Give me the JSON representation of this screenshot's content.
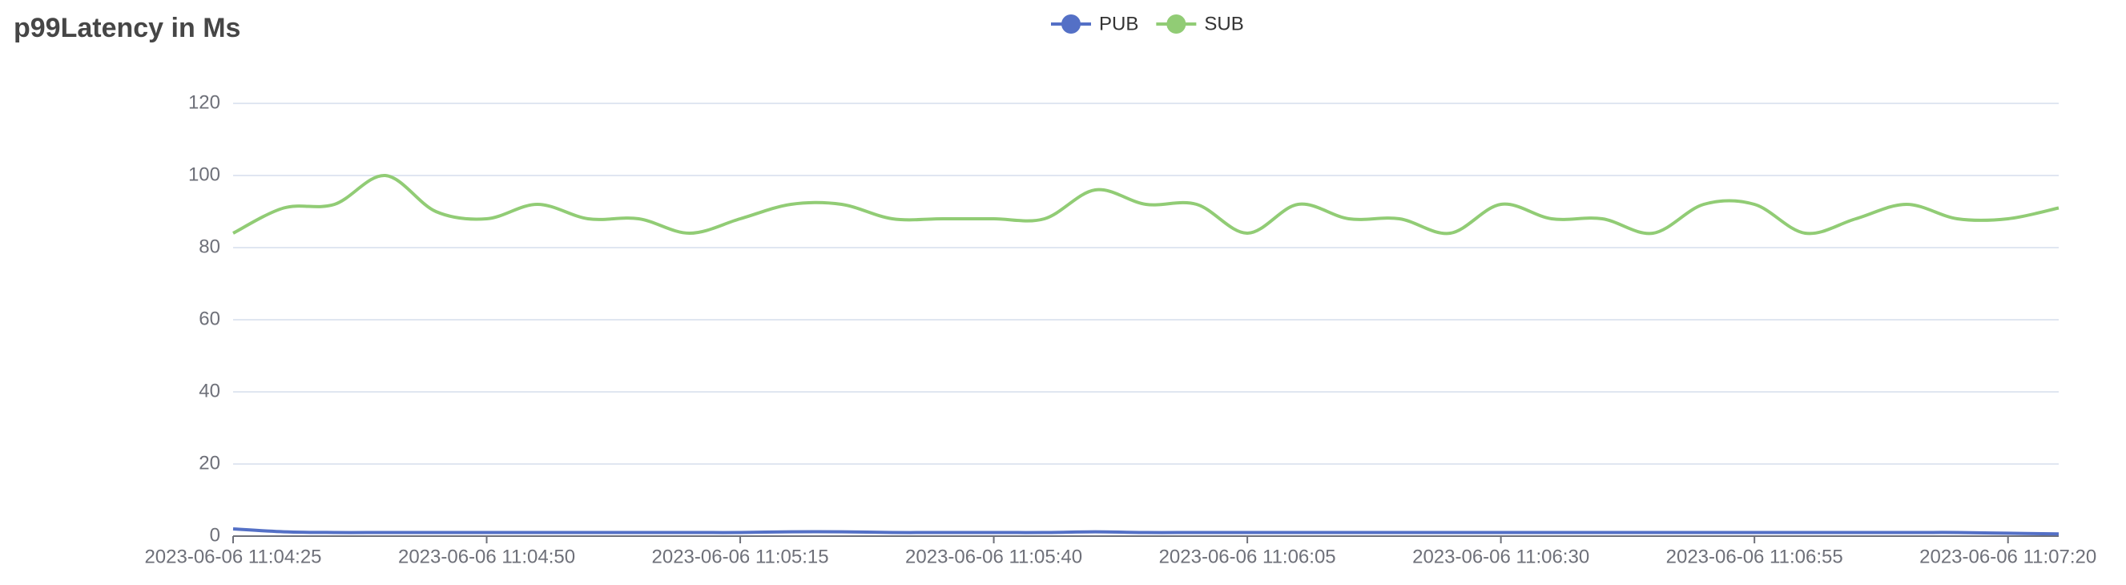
{
  "chart_data": {
    "type": "line",
    "title": "p99Latency in Ms",
    "x": [
      "2023-06-06 11:04:25",
      "2023-06-06 11:04:30",
      "2023-06-06 11:04:35",
      "2023-06-06 11:04:40",
      "2023-06-06 11:04:45",
      "2023-06-06 11:04:50",
      "2023-06-06 11:04:55",
      "2023-06-06 11:05:00",
      "2023-06-06 11:05:05",
      "2023-06-06 11:05:10",
      "2023-06-06 11:05:15",
      "2023-06-06 11:05:20",
      "2023-06-06 11:05:25",
      "2023-06-06 11:05:30",
      "2023-06-06 11:05:35",
      "2023-06-06 11:05:40",
      "2023-06-06 11:05:45",
      "2023-06-06 11:05:50",
      "2023-06-06 11:05:55",
      "2023-06-06 11:06:00",
      "2023-06-06 11:06:05",
      "2023-06-06 11:06:10",
      "2023-06-06 11:06:15",
      "2023-06-06 11:06:20",
      "2023-06-06 11:06:25",
      "2023-06-06 11:06:30",
      "2023-06-06 11:06:35",
      "2023-06-06 11:06:40",
      "2023-06-06 11:06:45",
      "2023-06-06 11:06:50",
      "2023-06-06 11:06:55",
      "2023-06-06 11:07:00",
      "2023-06-06 11:07:05",
      "2023-06-06 11:07:10",
      "2023-06-06 11:07:15",
      "2023-06-06 11:07:20",
      "2023-06-06 11:07:25"
    ],
    "series": [
      {
        "name": "PUB",
        "color": "#5470c6",
        "values": [
          2,
          1.2,
          1,
          1,
          1,
          1,
          1,
          1,
          1,
          1,
          1,
          1.2,
          1.2,
          1,
          1,
          1,
          1,
          1.2,
          1,
          1,
          1,
          1,
          1,
          1,
          1,
          1,
          1,
          1,
          1,
          1,
          1,
          1,
          1,
          1,
          1,
          0.8,
          0.6
        ]
      },
      {
        "name": "SUB",
        "color": "#91cc75",
        "values": [
          84,
          91,
          92,
          100,
          90,
          88,
          92,
          88,
          88,
          84,
          88,
          92,
          92,
          88,
          88,
          88,
          88,
          96,
          92,
          92,
          84,
          92,
          88,
          88,
          84,
          92,
          88,
          88,
          84,
          92,
          92,
          84,
          88,
          92,
          88,
          88,
          91
        ]
      }
    ],
    "xlim": [
      "2023-06-06 11:04:25",
      "2023-06-06 11:07:25"
    ],
    "xticks": [
      "2023-06-06 11:04:25",
      "2023-06-06 11:04:50",
      "2023-06-06 11:05:15",
      "2023-06-06 11:05:40",
      "2023-06-06 11:06:05",
      "2023-06-06 11:06:30",
      "2023-06-06 11:06:55",
      "2023-06-06 11:07:20"
    ],
    "ylim": [
      0,
      120
    ],
    "yticks": [
      0,
      20,
      40,
      60,
      80,
      100,
      120
    ],
    "grid": true,
    "legend": "top"
  }
}
